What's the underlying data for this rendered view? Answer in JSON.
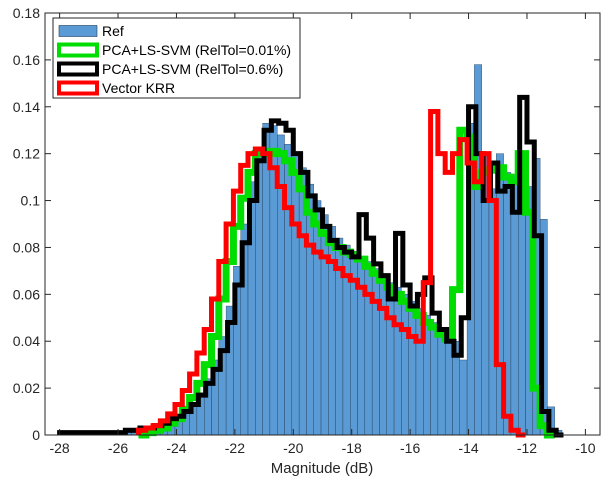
{
  "chart_data": {
    "type": "bar",
    "subtype": "histogram-with-step-overlays",
    "title": "",
    "xlabel": "Magnitude (dB)",
    "ylabel": "",
    "xlim": [
      -28.5,
      -9.5
    ],
    "ylim": [
      0,
      0.18
    ],
    "xticks": [
      -28,
      -26,
      -24,
      -22,
      -20,
      -18,
      -16,
      -14,
      -12,
      -10
    ],
    "xtick_labels": [
      "-28",
      "-26",
      "-24",
      "-22",
      "-20",
      "-18",
      "-16",
      "-14",
      "-12",
      "-10"
    ],
    "yticks": [
      0,
      0.02,
      0.04,
      0.06,
      0.08,
      0.1,
      0.12,
      0.14,
      0.16,
      0.18
    ],
    "ytick_labels": [
      "0",
      "0.02",
      "0.04",
      "0.06",
      "0.08",
      "0.1",
      "0.12",
      "0.14",
      "0.16",
      "0.18"
    ],
    "grid": false,
    "box": true,
    "legend_position": "top-left",
    "series": [
      {
        "name": "Ref",
        "kind": "histogram",
        "color": "#5b9bd5",
        "edgecolor": "#1f3a55",
        "x_start": -27.8,
        "bin_width": 0.25,
        "values": [
          0,
          0,
          0,
          0,
          0,
          0,
          0,
          0,
          0.001,
          0.001,
          0.001,
          0.001,
          0.002,
          0.003,
          0.005,
          0.007,
          0.01,
          0.014,
          0.018,
          0.024,
          0.032,
          0.042,
          0.055,
          0.072,
          0.09,
          0.108,
          0.122,
          0.133,
          0.132,
          0.128,
          0.124,
          0.12,
          0.114,
          0.107,
          0.1,
          0.094,
          0.089,
          0.084,
          0.081,
          0.078,
          0.075,
          0.074,
          0.071,
          0.068,
          0.065,
          0.063,
          0.06,
          0.057,
          0.054,
          0.051,
          0.048,
          0.045,
          0.043,
          0.04,
          0.032,
          0.133,
          0.158,
          0.119,
          0.105,
          0.12,
          0.112,
          0.111,
          0.108,
          0.106,
          0.118,
          0.092,
          0.012,
          0.002,
          0
        ]
      },
      {
        "name": "PCA+LS-SVM (RelTol=0.01%)",
        "kind": "step",
        "color": "#00dd00",
        "x_start": -25.3,
        "bin_width": 0.25,
        "values": [
          0,
          0.001,
          0.002,
          0.003,
          0.005,
          0.007,
          0.011,
          0.016,
          0.022,
          0.03,
          0.042,
          0.058,
          0.074,
          0.089,
          0.101,
          0.112,
          0.12,
          0.12,
          0.121,
          0.12,
          0.117,
          0.112,
          0.105,
          0.095,
          0.09,
          0.086,
          0.082,
          0.08,
          0.078,
          0.077,
          0.075,
          0.072,
          0.069,
          0.066,
          0.063,
          0.06,
          0.057,
          0.054,
          0.051,
          0.048,
          0.046,
          0.043,
          0.041,
          0.062,
          0.13,
          0.127,
          0.106,
          0.112,
          0.113,
          0.114,
          0.11,
          0.108,
          0.12,
          0.095,
          0.02,
          0.004,
          0
        ]
      },
      {
        "name": "PCA+LS-SVM (RelTol=0.6%)",
        "kind": "step",
        "color": "#000000",
        "x_start": -28.0,
        "bin_width": 0.25,
        "values": [
          0.001,
          0.001,
          0.001,
          0.001,
          0.001,
          0.001,
          0.001,
          0.001,
          0.001,
          0.002,
          0.002,
          0.003,
          0.003,
          0.004,
          0.005,
          0.007,
          0.008,
          0.01,
          0.013,
          0.017,
          0.022,
          0.028,
          0.036,
          0.048,
          0.064,
          0.082,
          0.1,
          0.117,
          0.13,
          0.134,
          0.133,
          0.13,
          0.12,
          0.112,
          0.102,
          0.096,
          0.089,
          0.083,
          0.08,
          0.078,
          0.076,
          0.094,
          0.084,
          0.073,
          0.068,
          0.058,
          0.086,
          0.064,
          0.055,
          0.06,
          0.067,
          0.052,
          0.045,
          0.04,
          0.034,
          0.05,
          0.14,
          0.12,
          0.1,
          0.116,
          0.104,
          0.106,
          0.095,
          0.144,
          0.125,
          0.085,
          0.01,
          0.002,
          0
        ]
      },
      {
        "name": "Vector KRR",
        "kind": "step",
        "color": "#ff0000",
        "x_start": -25.3,
        "bin_width": 0.25,
        "values": [
          0.002,
          0.003,
          0.004,
          0.006,
          0.009,
          0.013,
          0.019,
          0.026,
          0.035,
          0.045,
          0.058,
          0.074,
          0.09,
          0.104,
          0.115,
          0.12,
          0.122,
          0.12,
          0.114,
          0.106,
          0.097,
          0.09,
          0.085,
          0.081,
          0.078,
          0.076,
          0.074,
          0.071,
          0.068,
          0.066,
          0.063,
          0.06,
          0.057,
          0.054,
          0.05,
          0.047,
          0.045,
          0.042,
          0.04,
          0.065,
          0.138,
          0.12,
          0.112,
          0.12,
          0.126,
          0.116,
          0.108,
          0.12,
          0.1,
          0.03,
          0.008,
          0.002,
          0
        ]
      }
    ]
  }
}
